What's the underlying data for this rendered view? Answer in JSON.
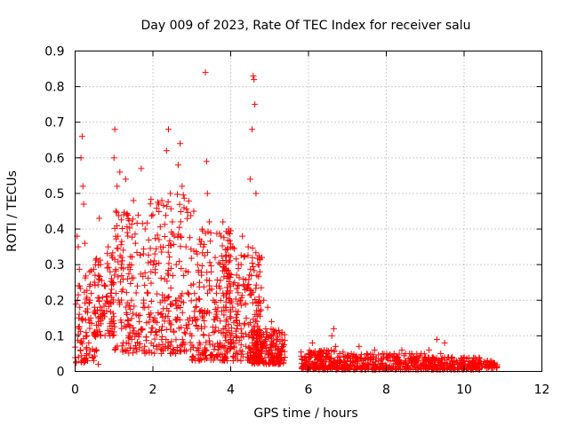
{
  "chart_data": {
    "type": "scatter",
    "title": "Day 009 of 2023, Rate Of TEC Index for receiver salu",
    "xlabel": "GPS time / hours",
    "ylabel": "ROTI / TECUs",
    "xlim": [
      0,
      12
    ],
    "ylim": [
      0,
      0.9
    ],
    "xticks": [
      0,
      2,
      4,
      6,
      8,
      10,
      12
    ],
    "yticks": [
      0,
      0.1,
      0.2,
      0.3,
      0.4,
      0.5,
      0.6,
      0.7,
      0.8,
      0.9
    ],
    "xtick_labels": [
      "0",
      "2",
      "4",
      "6",
      "8",
      "10",
      "12"
    ],
    "ytick_labels": [
      "0",
      "0.1",
      "0.2",
      "0.3",
      "0.4",
      "0.5",
      "0.6",
      "0.7",
      "0.8",
      "0.9"
    ],
    "grid": true,
    "marker": "+",
    "marker_color": "#ff0000",
    "series": [
      {
        "name": "ROTI",
        "points": [
          [
            0.05,
            0.38
          ],
          [
            0.08,
            0.35
          ],
          [
            0.1,
            0.12
          ],
          [
            0.12,
            0.18
          ],
          [
            0.15,
            0.6
          ],
          [
            0.18,
            0.66
          ],
          [
            0.2,
            0.52
          ],
          [
            0.22,
            0.47
          ],
          [
            0.25,
            0.36
          ],
          [
            0.28,
            0.1
          ],
          [
            0.3,
            0.05
          ],
          [
            0.32,
            0.03
          ],
          [
            0.35,
            0.08
          ],
          [
            0.38,
            0.2
          ],
          [
            0.4,
            0.15
          ],
          [
            0.45,
            0.04
          ],
          [
            0.5,
            0.18
          ],
          [
            0.55,
            0.13
          ],
          [
            0.6,
            0.27
          ],
          [
            0.62,
            0.43
          ],
          [
            0.65,
            0.3
          ],
          [
            0.7,
            0.16
          ],
          [
            0.75,
            0.24
          ],
          [
            0.8,
            0.21
          ],
          [
            0.85,
            0.35
          ],
          [
            0.9,
            0.28
          ],
          [
            0.95,
            0.12
          ],
          [
            1.0,
            0.6
          ],
          [
            1.02,
            0.68
          ],
          [
            1.05,
            0.45
          ],
          [
            1.08,
            0.52
          ],
          [
            1.1,
            0.38
          ],
          [
            1.15,
            0.56
          ],
          [
            1.2,
            0.32
          ],
          [
            1.25,
            0.44
          ],
          [
            1.3,
            0.54
          ],
          [
            1.35,
            0.26
          ],
          [
            1.4,
            0.3
          ],
          [
            1.45,
            0.2
          ],
          [
            1.5,
            0.48
          ],
          [
            1.55,
            0.36
          ],
          [
            1.6,
            0.24
          ],
          [
            1.65,
            0.14
          ],
          [
            1.7,
            0.57
          ],
          [
            1.75,
            0.18
          ],
          [
            1.8,
            0.4
          ],
          [
            1.85,
            0.22
          ],
          [
            1.9,
            0.16
          ],
          [
            1.95,
            0.28
          ],
          [
            2.0,
            0.44
          ],
          [
            2.05,
            0.33
          ],
          [
            2.1,
            0.07
          ],
          [
            2.15,
            0.47
          ],
          [
            2.2,
            0.35
          ],
          [
            2.25,
            0.2
          ],
          [
            2.3,
            0.26
          ],
          [
            2.35,
            0.62
          ],
          [
            2.4,
            0.68
          ],
          [
            2.45,
            0.5
          ],
          [
            2.5,
            0.42
          ],
          [
            2.55,
            0.38
          ],
          [
            2.6,
            0.3
          ],
          [
            2.65,
            0.58
          ],
          [
            2.7,
            0.64
          ],
          [
            2.75,
            0.52
          ],
          [
            2.8,
            0.46
          ],
          [
            2.85,
            0.35
          ],
          [
            2.9,
            0.22
          ],
          [
            2.95,
            0.15
          ],
          [
            3.0,
            0.1
          ],
          [
            3.05,
            0.45
          ],
          [
            3.1,
            0.18
          ],
          [
            3.15,
            0.3
          ],
          [
            3.2,
            0.25
          ],
          [
            3.25,
            0.12
          ],
          [
            3.3,
            0.35
          ],
          [
            3.35,
            0.84
          ],
          [
            3.38,
            0.59
          ],
          [
            3.4,
            0.5
          ],
          [
            3.45,
            0.42
          ],
          [
            3.5,
            0.28
          ],
          [
            3.55,
            0.2
          ],
          [
            3.6,
            0.32
          ],
          [
            3.65,
            0.15
          ],
          [
            3.7,
            0.24
          ],
          [
            3.75,
            0.38
          ],
          [
            3.8,
            0.42
          ],
          [
            3.85,
            0.3
          ],
          [
            3.9,
            0.22
          ],
          [
            3.95,
            0.4
          ],
          [
            4.0,
            0.35
          ],
          [
            4.05,
            0.18
          ],
          [
            4.1,
            0.25
          ],
          [
            4.15,
            0.12
          ],
          [
            4.2,
            0.3
          ],
          [
            4.25,
            0.2
          ],
          [
            4.3,
            0.38
          ],
          [
            4.35,
            0.24
          ],
          [
            4.4,
            0.15
          ],
          [
            4.45,
            0.35
          ],
          [
            4.5,
            0.54
          ],
          [
            4.55,
            0.68
          ],
          [
            4.58,
            0.83
          ],
          [
            4.6,
            0.82
          ],
          [
            4.62,
            0.75
          ],
          [
            4.65,
            0.5
          ],
          [
            4.7,
            0.3
          ],
          [
            4.75,
            0.28
          ],
          [
            4.8,
            0.32
          ],
          [
            4.85,
            0.2
          ],
          [
            4.9,
            0.12
          ],
          [
            4.95,
            0.18
          ],
          [
            5.0,
            0.1
          ],
          [
            5.05,
            0.14
          ],
          [
            5.1,
            0.08
          ],
          [
            5.15,
            0.06
          ],
          [
            5.2,
            0.09
          ],
          [
            5.25,
            0.05
          ],
          [
            5.3,
            0.04
          ],
          [
            5.35,
            0.07
          ],
          [
            5.9,
            0.03
          ],
          [
            6.0,
            0.05
          ],
          [
            6.1,
            0.08
          ],
          [
            6.2,
            0.04
          ],
          [
            6.3,
            0.03
          ],
          [
            6.4,
            0.06
          ],
          [
            6.5,
            0.04
          ],
          [
            6.6,
            0.1
          ],
          [
            6.65,
            0.12
          ],
          [
            6.7,
            0.07
          ],
          [
            6.8,
            0.05
          ],
          [
            6.9,
            0.04
          ],
          [
            7.0,
            0.03
          ],
          [
            7.1,
            0.05
          ],
          [
            7.2,
            0.04
          ],
          [
            7.3,
            0.07
          ],
          [
            7.4,
            0.03
          ],
          [
            7.5,
            0.05
          ],
          [
            7.6,
            0.04
          ],
          [
            7.7,
            0.06
          ],
          [
            7.8,
            0.03
          ],
          [
            7.9,
            0.05
          ],
          [
            8.0,
            0.04
          ],
          [
            8.1,
            0.03
          ],
          [
            8.2,
            0.05
          ],
          [
            8.3,
            0.04
          ],
          [
            8.4,
            0.06
          ],
          [
            8.5,
            0.03
          ],
          [
            8.6,
            0.05
          ],
          [
            8.7,
            0.04
          ],
          [
            8.8,
            0.03
          ],
          [
            8.9,
            0.05
          ],
          [
            9.0,
            0.04
          ],
          [
            9.1,
            0.06
          ],
          [
            9.2,
            0.04
          ],
          [
            9.3,
            0.09
          ],
          [
            9.4,
            0.05
          ],
          [
            9.5,
            0.08
          ],
          [
            9.6,
            0.04
          ],
          [
            9.7,
            0.03
          ],
          [
            9.8,
            0.03
          ],
          [
            9.9,
            0.02
          ],
          [
            10.0,
            0.03
          ],
          [
            10.1,
            0.02
          ],
          [
            10.2,
            0.02
          ],
          [
            10.5,
            0.02
          ],
          [
            10.6,
            0.03
          ],
          [
            10.7,
            0.02
          ],
          [
            10.75,
            0.02
          ]
        ]
      }
    ],
    "generated_density": [
      {
        "x_range": [
          0.0,
          0.6
        ],
        "y_range": [
          0.02,
          0.3
        ],
        "count": 90
      },
      {
        "x_range": [
          0.5,
          1.0
        ],
        "y_range": [
          0.1,
          0.35
        ],
        "count": 90
      },
      {
        "x_range": [
          1.0,
          1.9
        ],
        "y_range": [
          0.05,
          0.45
        ],
        "count": 160
      },
      {
        "x_range": [
          1.9,
          3.0
        ],
        "y_range": [
          0.05,
          0.5
        ],
        "count": 200
      },
      {
        "x_range": [
          3.0,
          4.0
        ],
        "y_range": [
          0.03,
          0.4
        ],
        "count": 200
      },
      {
        "x_range": [
          3.8,
          4.8
        ],
        "y_range": [
          0.03,
          0.35
        ],
        "count": 220
      },
      {
        "x_range": [
          4.5,
          5.4
        ],
        "y_range": [
          0.02,
          0.12
        ],
        "count": 200
      },
      {
        "x_range": [
          5.8,
          7.0
        ],
        "y_range": [
          0.005,
          0.06
        ],
        "count": 200
      },
      {
        "x_range": [
          7.0,
          9.0
        ],
        "y_range": [
          0.005,
          0.05
        ],
        "count": 260
      },
      {
        "x_range": [
          9.0,
          10.4
        ],
        "y_range": [
          0.005,
          0.04
        ],
        "count": 200
      },
      {
        "x_range": [
          10.4,
          10.85
        ],
        "y_range": [
          0.01,
          0.03
        ],
        "count": 40
      }
    ]
  }
}
